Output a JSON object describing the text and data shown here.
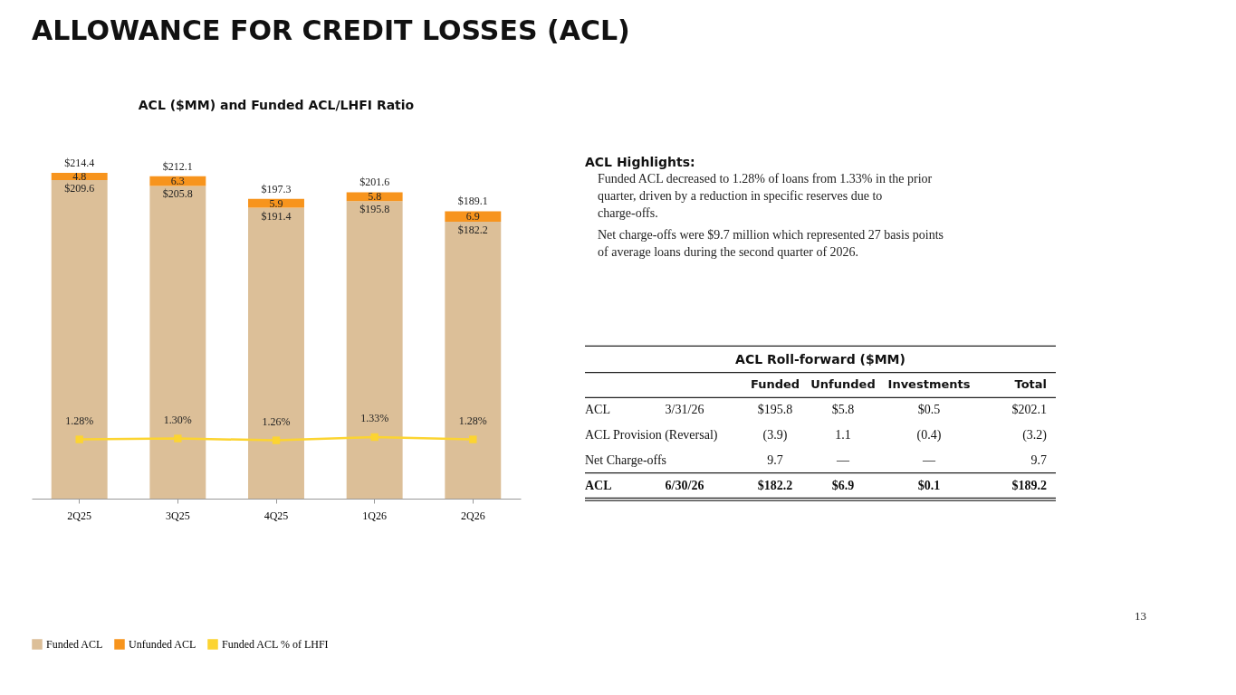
{
  "chart_data": [
    {
      "type": "bar",
      "title": "ALLOWANCE FOR CREDIT LOSSES (ACL)",
      "subtitle": "ACL ($MM) and Funded ACL/LHFI Ratio",
      "categories": [
        "2Q25",
        "3Q25",
        "4Q25",
        "1Q26",
        "2Q26"
      ],
      "stacked": true,
      "tick_labels": "x",
      "grid": false,
      "legend": "bottom",
      "totals": [
        "$214.4",
        "$212.1",
        "$197.3",
        "$201.6",
        "$189.1"
      ],
      "series": [
        {
          "name": "Funded ACL",
          "type": "bar",
          "color": "#dcbf98",
          "values": [
            209.6,
            205.8,
            191.4,
            195.8,
            182.2
          ],
          "value_labels": [
            "$209.6",
            "$205.8",
            "$191.4",
            "$195.8",
            "$182.2"
          ]
        },
        {
          "name": "Unfunded ACL",
          "type": "bar",
          "color": "#f7941d",
          "values": [
            4.8,
            6.3,
            5.9,
            5.8,
            6.9
          ],
          "value_labels": [
            "4.8",
            "6.3",
            "5.9",
            "5.8",
            "6.9"
          ]
        },
        {
          "name": "Funded ACL % of LHFI",
          "type": "line",
          "axis": "y2",
          "color": "#fcd431",
          "marker": "square",
          "values": [
            1.28,
            1.3,
            1.26,
            1.33,
            1.28
          ],
          "value_labels": [
            "1.28%",
            "1.30%",
            "1.26%",
            "1.33%",
            "1.28%"
          ]
        }
      ]
    },
    {
      "type": "other",
      "title": "ACL Highlights:",
      "annotations": [
        "Funded ACL decreased to 1.28% of loans from 1.33% in the prior quarter, driven by a reduction in specific reserves due to charge-offs.",
        "Net charge-offs were $9.7 million which represented 27 basis points of average loans during the second quarter of 2026."
      ]
    },
    {
      "type": "other",
      "title": "ACL Roll-forward ($MM)",
      "categories": [
        null,
        "Funded",
        "Unfunded",
        "Investments",
        "Total"
      ],
      "y_categories": [
        "ACL",
        "ACL Provision (Reversal)",
        "Net Charge-offs",
        "ACL"
      ],
      "cell_labels": [
        [
          "3/31/26",
          "$195.8",
          "$5.8",
          "$0.5",
          "$202.1"
        ],
        [
          null,
          "(3.9)",
          "1.1",
          "(0.4)",
          "(3.2)"
        ],
        [
          null,
          "9.7",
          "—",
          "—",
          "9.7"
        ],
        [
          "6/30/26",
          "$182.2",
          "$6.9",
          "$0.1",
          "$189.2"
        ]
      ],
      "annotations": [
        "13"
      ]
    }
  ]
}
